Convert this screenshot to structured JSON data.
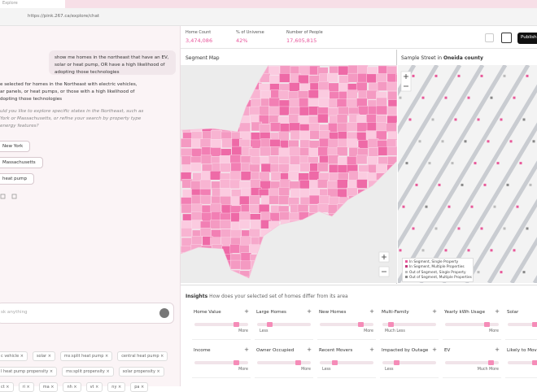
{
  "browser": {
    "tab": "Explore",
    "url": "https://pink.267.ca/explore/chat"
  },
  "chat": {
    "user_message": "show me homes in the northeast that have an EV, solar or heat pump, OR have a high likelihood of adopting those technologies",
    "reply": [
      "e selected for homes in the Northeast with electric vehicles,",
      "ar panels, or heat pumps, or those with a high likelihood of",
      "dopting those technologies"
    ],
    "question": [
      "uld you like to explore specific states in the Northeast, such as",
      "York or Massachusetts, or refine your search by property type",
      "energy features?"
    ],
    "suggestions": [
      "New York",
      "Massachusetts",
      "heat pump"
    ],
    "input_placeholder": "sk anything",
    "filters": [
      [
        "c vehicle ×",
        "solar ×",
        "ms:split heat pump ×",
        "central heat pump ×"
      ],
      [
        "l heat pump propensity ×",
        "ms:split propensity ×",
        "solar propensity ×"
      ],
      [
        "ct ×",
        "ri ×",
        "ma ×",
        "nh ×",
        "vt ×",
        "ny ×",
        "pa ×"
      ]
    ]
  },
  "stats": [
    {
      "label": "Home Count",
      "value": "3,474,086"
    },
    {
      "label": "% of Universe",
      "value": "42%"
    },
    {
      "label": "Number of People",
      "value": "17,605,815"
    }
  ],
  "publish": "Publish",
  "segment_map": {
    "title": "Segment Map"
  },
  "street": {
    "title": "Sample Street in",
    "county": "Oneida county",
    "legend": [
      "In Segment, Single Property",
      "In Segment, Multiple Properties",
      "Out of Segment, Single Property",
      "Out of Segment, Multiple Properties"
    ]
  },
  "insights": {
    "title": "Insights",
    "subtitle": "How does your selected set of homes differ from its area",
    "cards": [
      {
        "title": "Home Value",
        "label": "More"
      },
      {
        "title": "Large Homes",
        "label": "Less"
      },
      {
        "title": "New Homes",
        "label": "More"
      },
      {
        "title": "Multi-Family",
        "label": "Much Less"
      },
      {
        "title": "Yearly kWh Usage",
        "label": "More"
      },
      {
        "title": "Solar"
      },
      {
        "title": "Income",
        "label": "More"
      },
      {
        "title": "Owner Occupied",
        "label": "More"
      },
      {
        "title": "Recent Movers",
        "label": "Less"
      },
      {
        "title": "Impacted by Outage",
        "label": "Less"
      },
      {
        "title": "EV",
        "label": "Much More"
      },
      {
        "title": "Likely to Move"
      }
    ]
  }
}
